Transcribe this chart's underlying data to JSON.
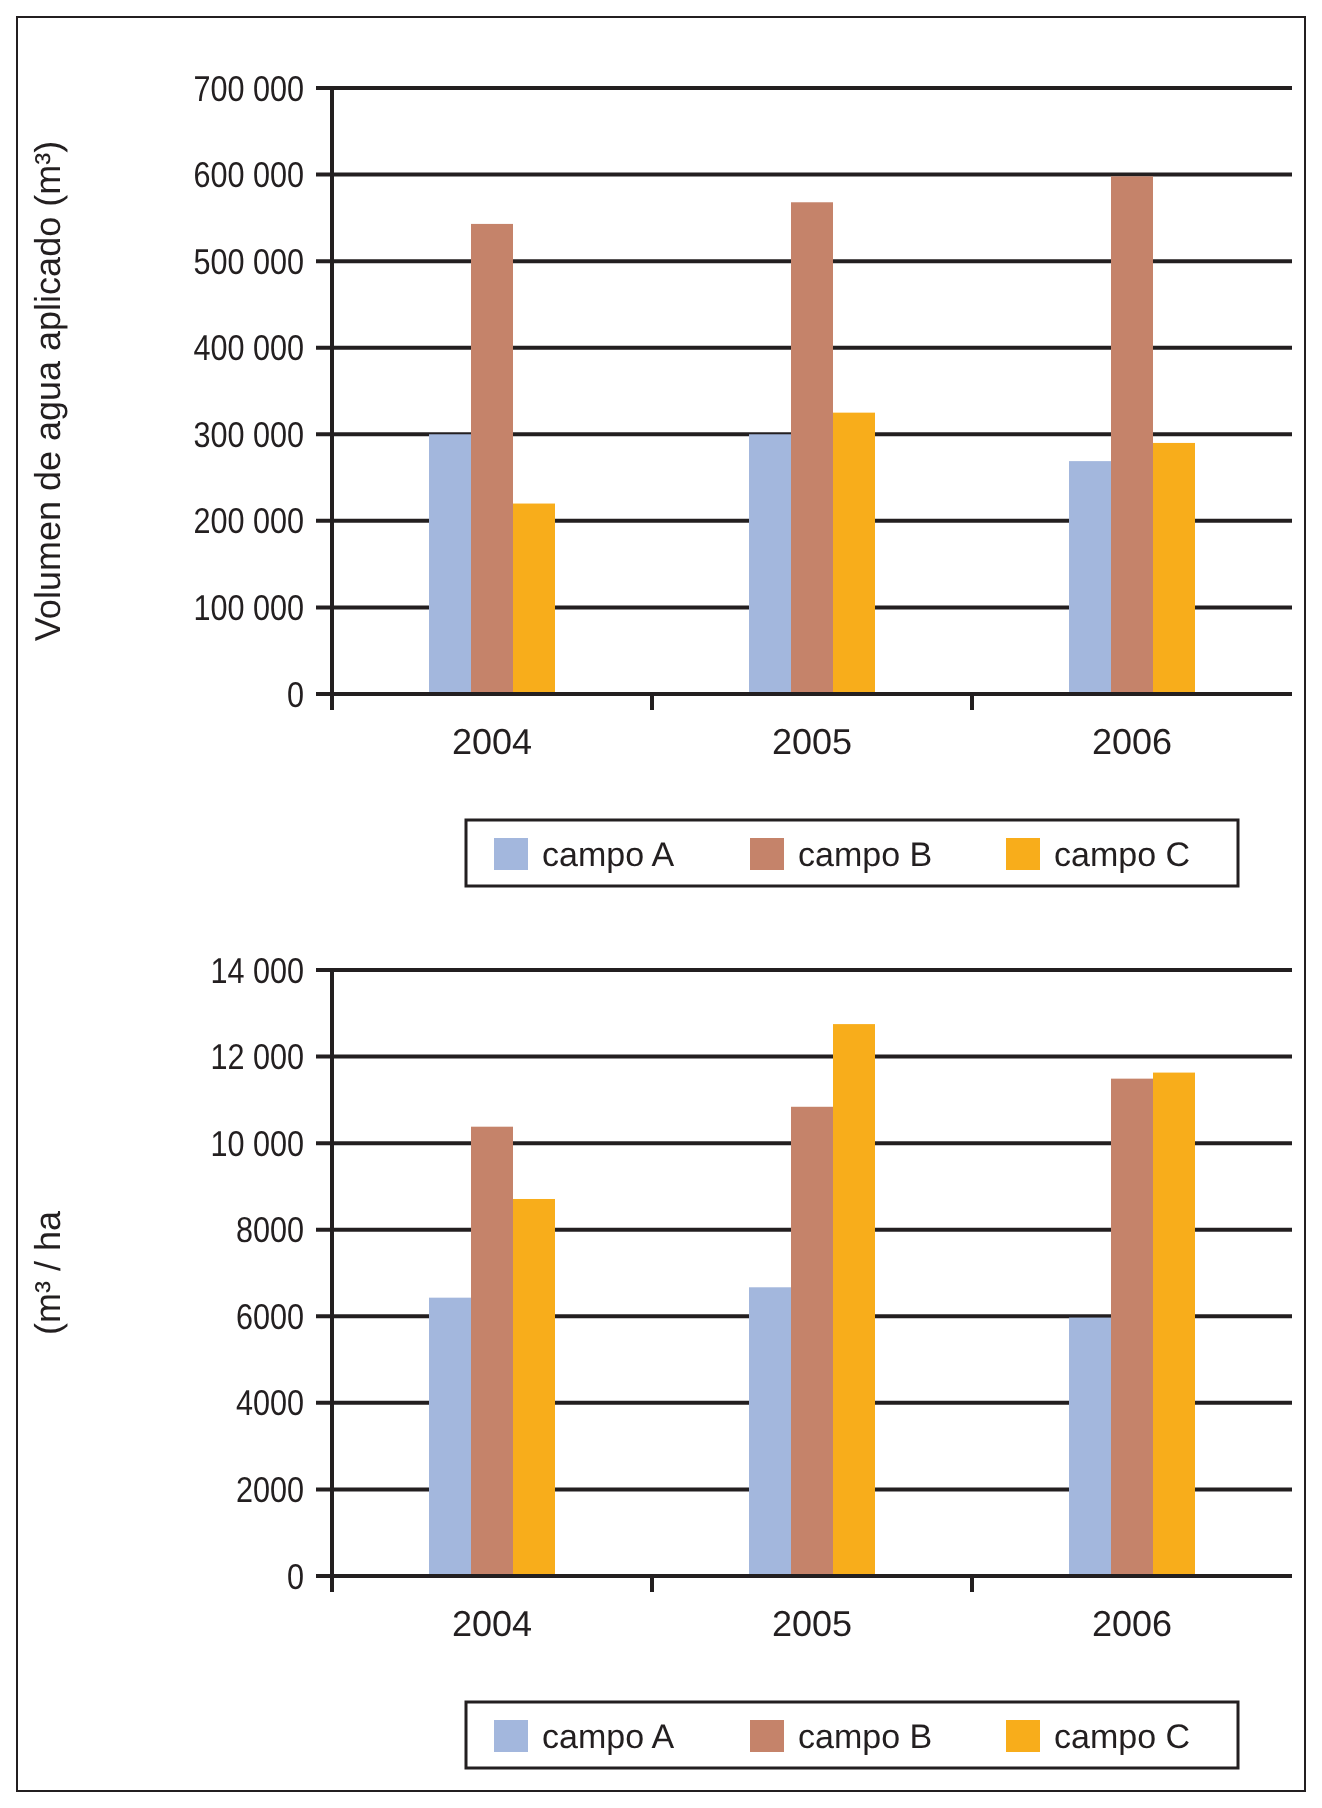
{
  "chart_data": [
    {
      "type": "bar",
      "ylabel": "Volumen de agua aplicado (m³)",
      "categories": [
        "2004",
        "2005",
        "2006"
      ],
      "series": [
        {
          "name": "campo A",
          "color": "#a3b7dd",
          "values": [
            300000,
            300000,
            269000
          ]
        },
        {
          "name": "campo B",
          "color": "#c5836a",
          "values": [
            543000,
            568000,
            598000
          ]
        },
        {
          "name": "campo C",
          "color": "#f8ad1b",
          "values": [
            220000,
            325000,
            290000
          ]
        }
      ],
      "ylim": [
        0,
        700000
      ],
      "yticks": [
        0,
        {
          "value": 100000,
          "label": "100 000"
        },
        {
          "value": 200000,
          "label": "200 000"
        },
        {
          "value": 300000,
          "label": "300 000"
        },
        {
          "value": 400000,
          "label": "400 000"
        },
        {
          "value": 500000,
          "label": "500 000"
        },
        {
          "value": 600000,
          "label": "600 000"
        },
        {
          "value": 700000,
          "label": "700 000"
        }
      ],
      "grid": "y",
      "legend": "bottom"
    },
    {
      "type": "bar",
      "ylabel": "(m³ / ha",
      "categories": [
        "2004",
        "2005",
        "2006"
      ],
      "series": [
        {
          "name": "campo A",
          "color": "#a3b7dd",
          "values": [
            6430,
            6670,
            5970
          ]
        },
        {
          "name": "campo B",
          "color": "#c5836a",
          "values": [
            10380,
            10840,
            11490
          ]
        },
        {
          "name": "campo C",
          "color": "#f8ad1b",
          "values": [
            8710,
            12750,
            11630
          ]
        }
      ],
      "ylim": [
        0,
        14000
      ],
      "yticks": [
        0,
        2000,
        4000,
        6000,
        8000,
        {
          "value": 10000,
          "label": "10 000"
        },
        {
          "value": 12000,
          "label": "12 000"
        },
        {
          "value": 14000,
          "label": "14 000"
        }
      ],
      "grid": "y",
      "legend": "bottom"
    }
  ]
}
